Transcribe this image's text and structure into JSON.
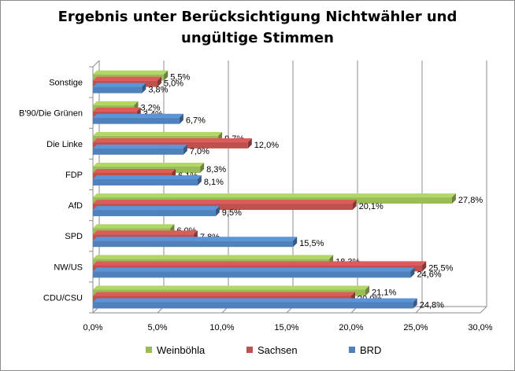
{
  "chart_data": {
    "type": "bar",
    "orientation": "horizontal",
    "title_lines": [
      "Ergebnis unter Berücksichtigung  Nichtwähler und",
      "ungültige  Stimmen"
    ],
    "categories": [
      "CDU/CSU",
      "NW/US",
      "SPD",
      "AfD",
      "FDP",
      "Die Linke",
      "B'90/Die Grünen",
      "Sonstige"
    ],
    "series": [
      {
        "name": "Weinböhla",
        "color": "#9bbb59",
        "values": [
          21.1,
          18.3,
          6.0,
          27.8,
          8.3,
          9.7,
          3.2,
          5.5
        ],
        "labels": [
          "21,1%",
          "18,3%",
          "6,0%",
          "27,8%",
          "8,3%",
          "9,7%",
          "3,2%",
          "5,5%"
        ]
      },
      {
        "name": "Sachsen",
        "color": "#c0504d",
        "values": [
          20.0,
          25.5,
          7.8,
          20.1,
          6.1,
          12.0,
          3.4,
          5.0
        ],
        "labels": [
          "20,0%",
          "25,5%",
          "7,8%",
          "20,1%",
          "6,1%",
          "12,0%",
          "3,4%",
          "5,0%"
        ]
      },
      {
        "name": "BRD",
        "color": "#4f81bd",
        "values": [
          24.8,
          24.6,
          15.5,
          9.5,
          8.1,
          7.0,
          6.7,
          3.8
        ],
        "labels": [
          "24,8%",
          "24,6%",
          "15,5%",
          "9,5%",
          "8,1%",
          "7,0%",
          "6,7%",
          "3,8%"
        ]
      }
    ],
    "xlim": [
      0,
      30
    ],
    "xticks": [
      0,
      5,
      10,
      15,
      20,
      25,
      30
    ],
    "xtick_labels": [
      "0,0%",
      "5,0%",
      "10,0%",
      "15,0%",
      "20,0%",
      "25,0%",
      "30,0%"
    ],
    "grid": true,
    "legend_position": "bottom"
  }
}
